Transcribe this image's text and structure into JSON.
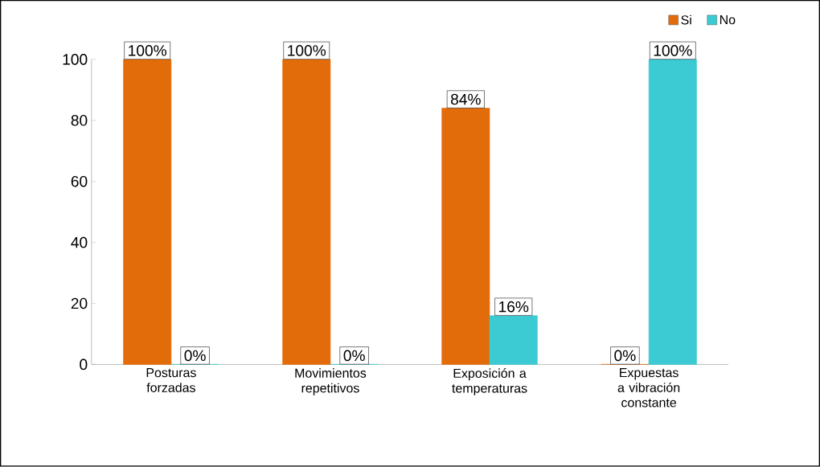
{
  "chart_data": {
    "type": "bar",
    "categories": [
      "Posturas forzadas",
      "Movimientos repetitivos",
      "Exposición a temperaturas",
      "Expuestas a vibración constante"
    ],
    "series": [
      {
        "name": "Si",
        "color": "#e36c0a",
        "values": [
          100,
          100,
          84,
          0
        ],
        "value_labels": [
          "100%",
          "100%",
          "84%",
          "0%"
        ]
      },
      {
        "name": "No",
        "color": "#3ccbd3",
        "values": [
          0,
          0,
          16,
          100
        ],
        "value_labels": [
          "0%",
          "0%",
          "16%",
          "100%"
        ]
      }
    ],
    "ylim": [
      0,
      100
    ],
    "yticks": [
      0,
      20,
      40,
      60,
      80,
      100
    ],
    "grid": false,
    "legend": "top right"
  }
}
